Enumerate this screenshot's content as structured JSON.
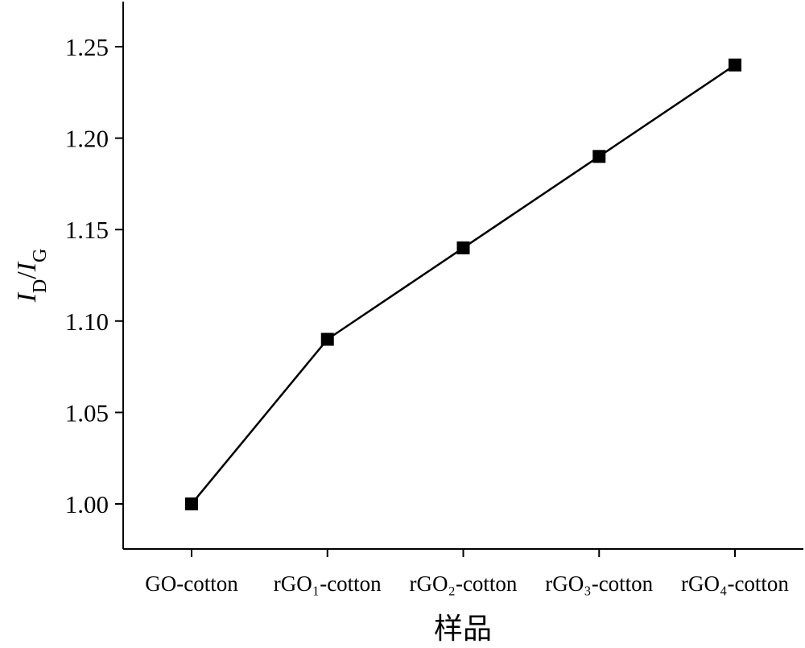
{
  "chart_data": {
    "type": "line",
    "categories": [
      "GO-cotton",
      "rGO₁-cotton",
      "rGO₂-cotton",
      "rGO₃-cotton",
      "rGO₄-cotton"
    ],
    "series": [
      {
        "values": [
          1.0,
          1.09,
          1.14,
          1.19,
          1.24
        ]
      }
    ],
    "xlabel": "样品",
    "ylabel": {
      "i1": "I",
      "s1": "D",
      "sep": "/",
      "i2": "I",
      "s2": "G"
    },
    "ylim": [
      0.975,
      1.275
    ],
    "yticks": [
      1.0,
      1.05,
      1.1,
      1.15,
      1.2,
      1.25
    ],
    "ytick_labels": [
      "1.00",
      "1.05",
      "1.10",
      "1.15",
      "1.20",
      "1.25"
    ],
    "marker": "square",
    "grid": false,
    "colors": {
      "line": "#000000",
      "marker": "#000000",
      "axis": "#000000"
    }
  }
}
